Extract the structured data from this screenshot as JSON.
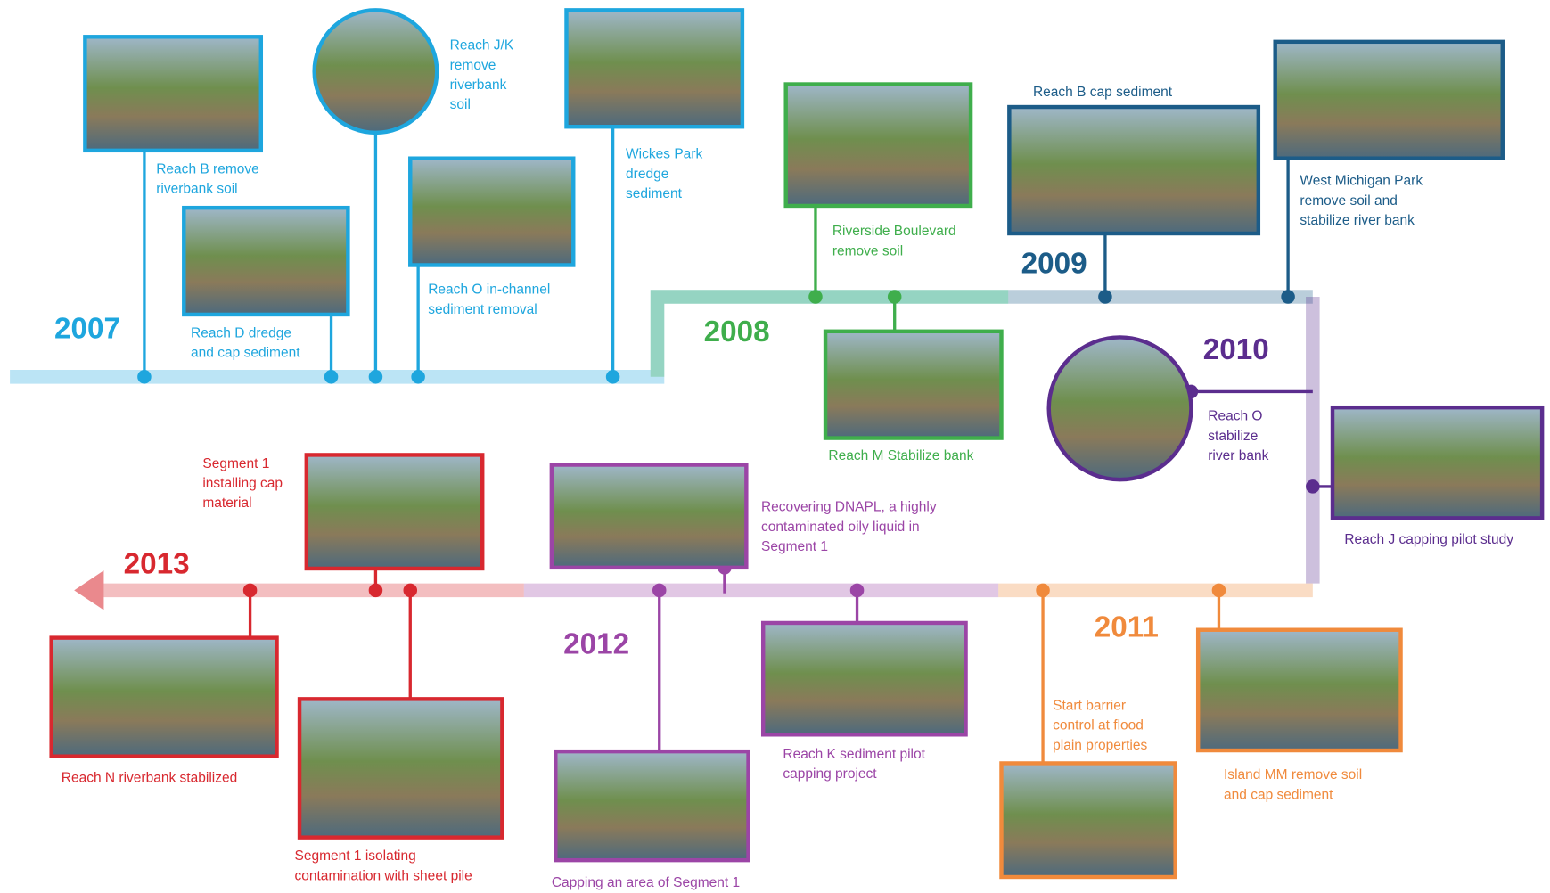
{
  "years": [
    {
      "label": "2007",
      "color": "#1ea6de",
      "items": [
        {
          "caption_lines": [
            "Reach B remove",
            "riverbank soil"
          ]
        },
        {
          "caption_lines": [
            "Reach J/K",
            "remove",
            "riverbank",
            "soil"
          ]
        },
        {
          "caption_lines": [
            "Reach D dredge",
            "and cap sediment"
          ]
        },
        {
          "caption_lines": [
            "Reach O in-channel",
            "sediment removal"
          ]
        },
        {
          "caption_lines": [
            "Wickes Park",
            "dredge",
            "sediment"
          ]
        }
      ]
    },
    {
      "label": "2008",
      "color": "#3fae4c",
      "items": [
        {
          "caption_lines": [
            "Riverside Boulevard",
            "remove soil"
          ]
        },
        {
          "caption_lines": [
            "Reach M Stabilize bank"
          ]
        }
      ]
    },
    {
      "label": "2009",
      "color": "#1c5c88",
      "items": [
        {
          "caption_lines": [
            "Reach B cap sediment"
          ]
        },
        {
          "caption_lines": [
            "West Michigan Park",
            "remove soil and",
            "stabilize river bank"
          ]
        }
      ]
    },
    {
      "label": "2010",
      "color": "#5b2d8e",
      "items": [
        {
          "caption_lines": [
            "Reach O",
            "stabilize",
            "river bank"
          ]
        },
        {
          "caption_lines": [
            "Reach J capping pilot study"
          ]
        }
      ]
    },
    {
      "label": "2011",
      "color": "#f08a3c",
      "items": [
        {
          "caption_lines": [
            "Start barrier",
            "control at flood",
            "plain properties"
          ]
        },
        {
          "caption_lines": [
            "Island MM remove soil",
            "and cap sediment"
          ]
        }
      ]
    },
    {
      "label": "2012",
      "color": "#9b45a6",
      "items": [
        {
          "caption_lines": [
            "Recovering DNAPL, a highly",
            "contaminated oily liquid in",
            "Segment 1"
          ]
        },
        {
          "caption_lines": [
            "Capping an area of Segment 1"
          ]
        },
        {
          "caption_lines": [
            "Reach K sediment pilot",
            "capping project"
          ]
        }
      ]
    },
    {
      "label": "2013",
      "color": "#d8282f",
      "items": [
        {
          "caption_lines": [
            "Segment 1",
            "installing cap",
            "material"
          ]
        },
        {
          "caption_lines": [
            "Reach N riverbank stabilized"
          ]
        },
        {
          "caption_lines": [
            "Segment 1 isolating",
            "contamination with sheet pile"
          ]
        }
      ]
    }
  ]
}
